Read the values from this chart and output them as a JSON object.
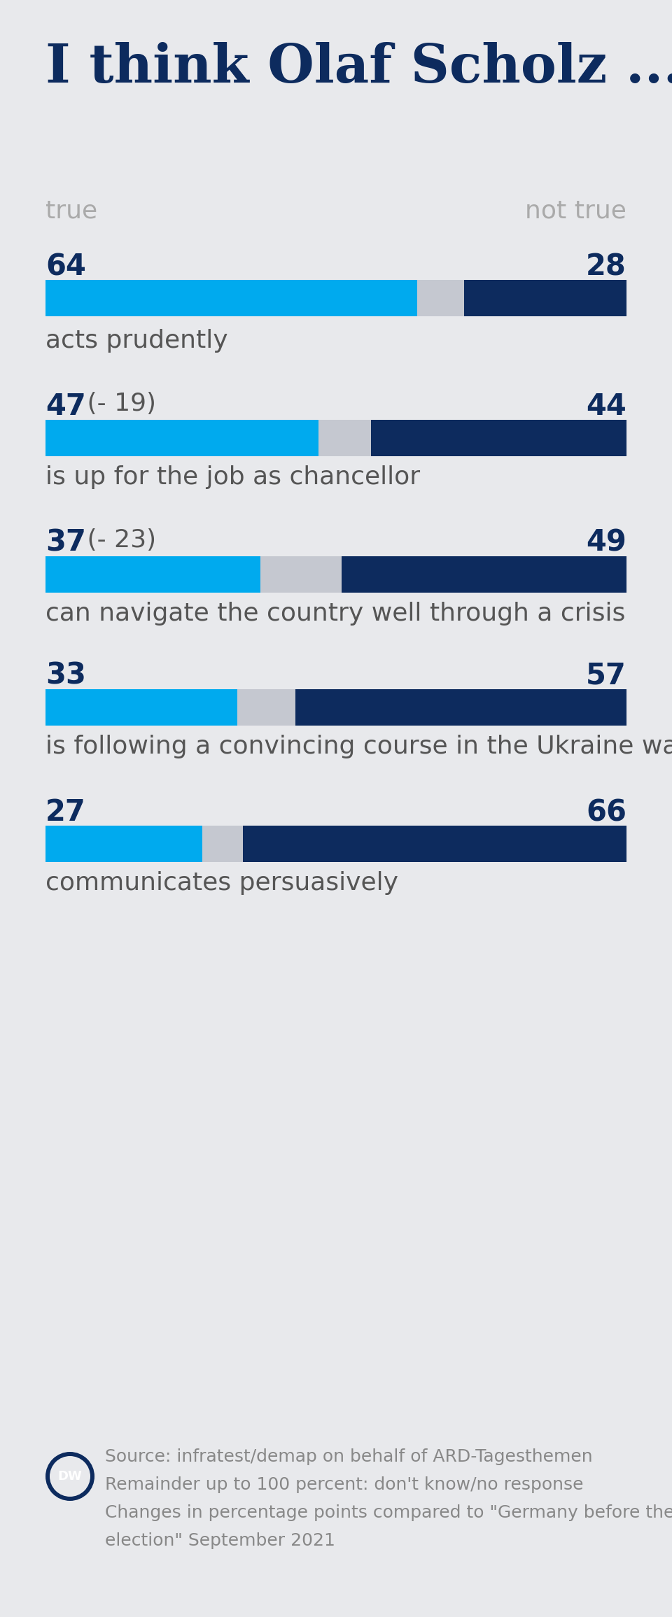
{
  "title": "I think Olaf Scholz ...",
  "background_color": "#e8e9ec",
  "true_label": "true",
  "not_true_label": "not true",
  "true_color": "#00AAEE",
  "not_true_color": "#0d2b5e",
  "gap_color": "#c5c8d0",
  "title_color": "#0d2b5e",
  "value_color_bold": "#0d2b5e",
  "label_color": "#555555",
  "bars": [
    {
      "true_val": 64,
      "not_true_val": 28,
      "true_label_extra": "",
      "description": "acts prudently"
    },
    {
      "true_val": 47,
      "not_true_val": 44,
      "true_label_extra": "(- 19)",
      "description": "is up for the job as chancellor"
    },
    {
      "true_val": 37,
      "not_true_val": 49,
      "true_label_extra": "(- 23)",
      "description": "can navigate the country well through a crisis"
    },
    {
      "true_val": 33,
      "not_true_val": 57,
      "true_label_extra": "",
      "description": "is following a convincing course in the Ukraine war"
    },
    {
      "true_val": 27,
      "not_true_val": 66,
      "true_label_extra": "",
      "description": "communicates persuasively"
    }
  ],
  "footer_text_line1": "Source: infratest/demap on behalf of ARD-Tagesthemen",
  "footer_text_line2": "Remainder up to 100 percent: don't know/no response",
  "footer_text_line3": "Changes in percentage points compared to \"Germany before the",
  "footer_text_line4": "election\" September 2021",
  "footer_text_color": "#888888"
}
